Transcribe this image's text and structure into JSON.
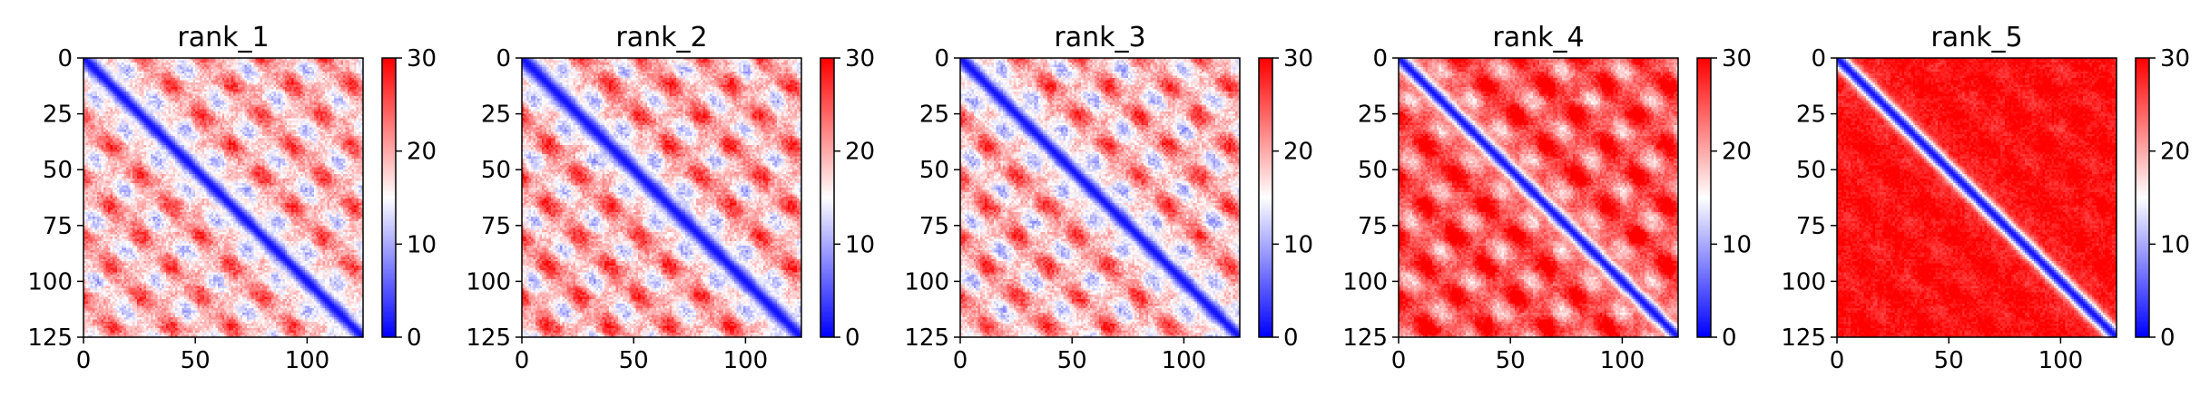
{
  "chart_data": [
    {
      "type": "heatmap",
      "title": "rank_1",
      "colormap": "bwr",
      "vmin": 0,
      "vmax": 30,
      "matrix_size": 125,
      "x_ticks": [
        "0",
        "50",
        "100"
      ],
      "y_ticks": [
        "0",
        "25",
        "50",
        "75",
        "100",
        "125"
      ],
      "colorbar_ticks": [
        "0",
        "10",
        "20",
        "30"
      ],
      "pattern": {
        "band_period": 27,
        "base": 19,
        "amp": 7.5,
        "diag_width": 4,
        "noise": 2.5
      }
    },
    {
      "type": "heatmap",
      "title": "rank_2",
      "colormap": "bwr",
      "vmin": 0,
      "vmax": 30,
      "matrix_size": 125,
      "x_ticks": [
        "0",
        "50",
        "100"
      ],
      "y_ticks": [
        "0",
        "25",
        "50",
        "75",
        "100",
        "125"
      ],
      "colorbar_ticks": [
        "0",
        "10",
        "20",
        "30"
      ],
      "pattern": {
        "band_period": 27,
        "base": 19.5,
        "amp": 8,
        "diag_width": 4.5,
        "noise": 2.5
      }
    },
    {
      "type": "heatmap",
      "title": "rank_3",
      "colormap": "bwr",
      "vmin": 0,
      "vmax": 30,
      "matrix_size": 125,
      "x_ticks": [
        "0",
        "50",
        "100"
      ],
      "y_ticks": [
        "0",
        "25",
        "50",
        "75",
        "100",
        "125"
      ],
      "colorbar_ticks": [
        "0",
        "10",
        "20",
        "30"
      ],
      "pattern": {
        "band_period": 27,
        "base": 19,
        "amp": 8,
        "diag_width": 4,
        "noise": 2.5
      }
    },
    {
      "type": "heatmap",
      "title": "rank_4",
      "colormap": "bwr",
      "vmin": 0,
      "vmax": 30,
      "matrix_size": 125,
      "x_ticks": [
        "0",
        "50",
        "100"
      ],
      "y_ticks": [
        "0",
        "25",
        "50",
        "75",
        "100",
        "125"
      ],
      "colorbar_ticks": [
        "0",
        "10",
        "20",
        "30"
      ],
      "pattern": {
        "band_period": 27,
        "base": 25,
        "amp": 7,
        "diag_width": 3.5,
        "noise": 2
      }
    },
    {
      "type": "heatmap",
      "title": "rank_5",
      "colormap": "bwr",
      "vmin": 0,
      "vmax": 30,
      "matrix_size": 125,
      "x_ticks": [
        "0",
        "50",
        "100"
      ],
      "y_ticks": [
        "0",
        "25",
        "50",
        "75",
        "100",
        "125"
      ],
      "colorbar_ticks": [
        "0",
        "10",
        "20",
        "30"
      ],
      "pattern": {
        "band_period": 27,
        "base": 29,
        "amp": 1.5,
        "diag_width": 3.5,
        "noise": 1.5
      }
    }
  ]
}
